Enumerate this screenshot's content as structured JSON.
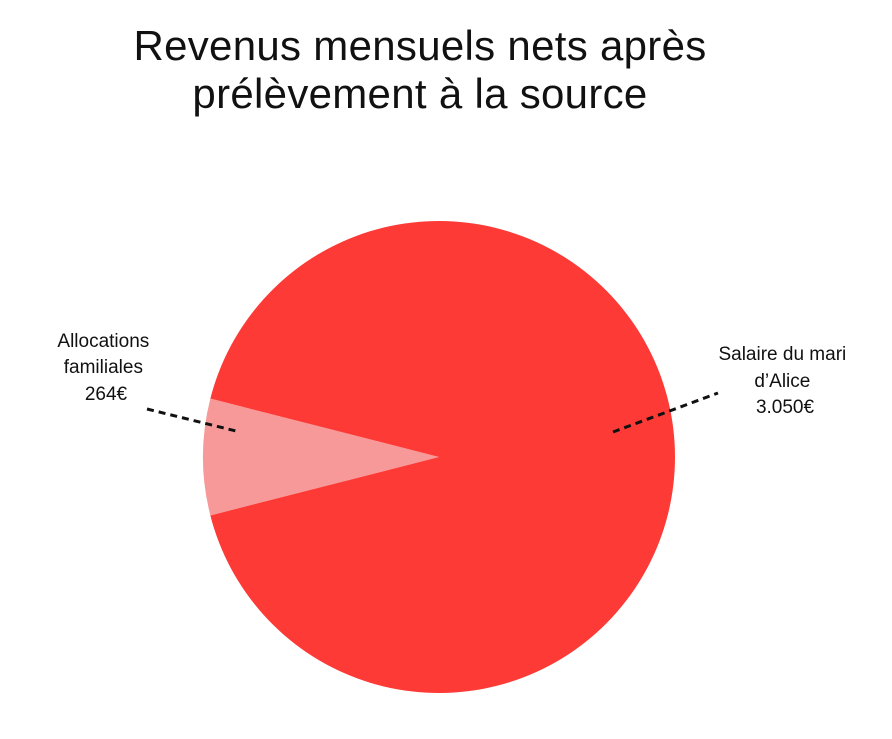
{
  "chart_data": {
    "type": "pie",
    "title": [
      "Revenus mensuels nets après",
      "prélèvement à la source"
    ],
    "slices": [
      {
        "label": [
          "Allocations",
          "familiales",
          "264€"
        ],
        "value": 264,
        "color": "#f79999"
      },
      {
        "label": [
          "Salaire du mari",
          "d’Alice",
          "3.050€"
        ],
        "value": 3050,
        "color": "#fd3a35"
      }
    ],
    "legend": "none"
  }
}
